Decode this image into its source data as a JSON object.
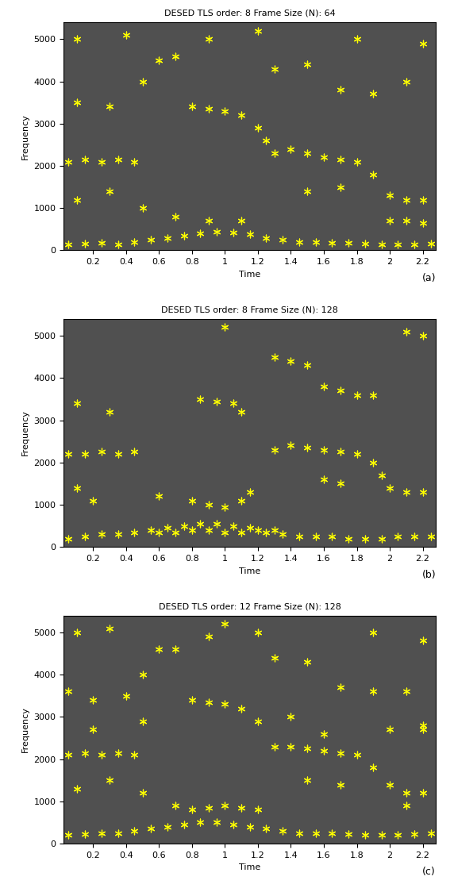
{
  "chart_data": [
    {
      "type": "scatter",
      "title": "DESED TLS order: 8 Frame Size (N): 64",
      "x_label": "Time",
      "y_label": "Frequency",
      "annotation": "(a)",
      "marker": "asterisk",
      "xlim": [
        0.02,
        2.28
      ],
      "ylim": [
        0,
        5400
      ],
      "xticks": [
        0.2,
        0.4,
        0.6,
        0.8,
        1,
        1.2,
        1.4,
        1.6,
        1.8,
        2,
        2.2
      ],
      "yticks": [
        0,
        1000,
        2000,
        3000,
        4000,
        5000
      ],
      "series": [
        {
          "name": "",
          "color": "#ffff00",
          "x": [
            0.05,
            0.15,
            0.25,
            0.35,
            0.45,
            0.55,
            0.65,
            0.75,
            0.85,
            0.95,
            1.05,
            1.15,
            1.25,
            1.35,
            1.45,
            1.55,
            1.65,
            1.75,
            1.85,
            1.95,
            2.05,
            2.15,
            2.25,
            0.05,
            0.15,
            0.25,
            0.35,
            0.45,
            0.8,
            0.9,
            1.0,
            1.1,
            1.2,
            1.25,
            1.3,
            1.4,
            1.5,
            1.6,
            1.7,
            1.8,
            1.9,
            2.0,
            2.1,
            2.2,
            0.1,
            0.3,
            0.5,
            0.6,
            0.7,
            1.3,
            1.5,
            1.7,
            1.9,
            2.1,
            0.1,
            0.3,
            0.5,
            0.7,
            0.9,
            1.1,
            1.5,
            1.7,
            2.0,
            2.1,
            2.2,
            0.1,
            0.4,
            0.9,
            1.2,
            1.8,
            2.2
          ],
          "values": [
            150,
            160,
            170,
            150,
            200,
            250,
            300,
            350,
            400,
            450,
            420,
            380,
            300,
            250,
            200,
            200,
            180,
            170,
            160,
            150,
            150,
            150,
            160,
            2100,
            2150,
            2100,
            2150,
            2100,
            3400,
            3350,
            3300,
            3200,
            2900,
            2600,
            2300,
            2400,
            2300,
            2200,
            2150,
            2100,
            1800,
            1300,
            1200,
            1200,
            3500,
            3400,
            4000,
            4500,
            4600,
            4300,
            4400,
            3800,
            3700,
            4000,
            1200,
            1400,
            1000,
            800,
            700,
            700,
            1400,
            1500,
            700,
            700,
            650,
            5000,
            5100,
            5000,
            5200,
            5000,
            4900
          ]
        }
      ]
    },
    {
      "type": "scatter",
      "title": "DESED TLS order: 8 Frame Size (N): 128",
      "x_label": "Time",
      "y_label": "Frequency",
      "annotation": "(b)",
      "marker": "asterisk",
      "xlim": [
        0.02,
        2.28
      ],
      "ylim": [
        0,
        5400
      ],
      "xticks": [
        0.2,
        0.4,
        0.6,
        0.8,
        1,
        1.2,
        1.4,
        1.6,
        1.8,
        2,
        2.2
      ],
      "yticks": [
        0,
        1000,
        2000,
        3000,
        4000,
        5000
      ],
      "series": [
        {
          "name": "",
          "color": "#ffff00",
          "x": [
            0.05,
            0.15,
            0.25,
            0.35,
            0.45,
            0.55,
            0.65,
            0.75,
            0.85,
            0.95,
            1.05,
            1.15,
            1.25,
            1.35,
            1.45,
            1.55,
            1.65,
            1.75,
            1.85,
            1.95,
            2.05,
            2.15,
            2.25,
            0.6,
            0.7,
            0.8,
            0.9,
            1.0,
            1.1,
            1.2,
            1.3,
            0.8,
            0.9,
            1.0,
            1.1,
            1.15,
            0.05,
            0.15,
            0.25,
            0.35,
            0.45,
            0.85,
            0.95,
            1.05,
            1.1,
            1.3,
            1.4,
            1.5,
            1.6,
            1.7,
            1.8,
            1.9,
            1.3,
            1.4,
            1.5,
            1.6,
            1.7,
            1.8,
            1.9,
            1.95,
            2.0,
            2.1,
            2.2,
            0.1,
            0.2,
            0.6,
            1.6,
            1.7,
            0.1,
            0.3,
            1.0,
            2.1,
            2.2
          ],
          "values": [
            200,
            250,
            300,
            300,
            350,
            400,
            450,
            500,
            550,
            550,
            500,
            450,
            350,
            300,
            250,
            250,
            250,
            200,
            200,
            200,
            250,
            250,
            250,
            350,
            350,
            400,
            400,
            350,
            350,
            400,
            400,
            1100,
            1000,
            950,
            1100,
            1300,
            2200,
            2200,
            2250,
            2200,
            2250,
            3500,
            3450,
            3400,
            3200,
            4500,
            4400,
            4300,
            3800,
            3700,
            3600,
            3600,
            2300,
            2400,
            2350,
            2300,
            2250,
            2200,
            2000,
            1700,
            1400,
            1300,
            1300,
            1400,
            1100,
            1200,
            1600,
            1500,
            3400,
            3200,
            5200,
            5100,
            5000
          ]
        }
      ]
    },
    {
      "type": "scatter",
      "title": "DESED TLS order: 12 Frame Size (N): 128",
      "x_label": "Time",
      "y_label": "Frequency",
      "annotation": "(c)",
      "marker": "asterisk",
      "xlim": [
        0.02,
        2.28
      ],
      "ylim": [
        0,
        5400
      ],
      "xticks": [
        0.2,
        0.4,
        0.6,
        0.8,
        1,
        1.2,
        1.4,
        1.6,
        1.8,
        2,
        2.2
      ],
      "yticks": [
        0,
        1000,
        2000,
        3000,
        4000,
        5000
      ],
      "series": [
        {
          "name": "",
          "color": "#ffff00",
          "x": [
            0.05,
            0.15,
            0.25,
            0.35,
            0.45,
            0.55,
            0.65,
            0.75,
            0.85,
            0.95,
            1.05,
            1.15,
            1.25,
            1.35,
            1.45,
            1.55,
            1.65,
            1.75,
            1.85,
            1.95,
            2.05,
            2.15,
            2.25,
            0.8,
            0.9,
            1.0,
            1.1,
            1.2,
            0.05,
            0.15,
            0.25,
            0.35,
            0.45,
            0.8,
            0.9,
            1.0,
            1.1,
            1.2,
            1.3,
            1.4,
            1.5,
            1.6,
            1.7,
            1.8,
            1.9,
            2.0,
            2.1,
            2.2,
            0.05,
            0.2,
            0.4,
            0.5,
            0.6,
            0.7,
            1.3,
            1.5,
            1.7,
            1.9,
            2.1,
            2.2,
            0.1,
            0.3,
            0.5,
            0.7,
            1.5,
            1.7,
            2.1,
            0.1,
            0.3,
            0.9,
            1.0,
            1.2,
            1.9,
            2.2,
            0.2,
            0.5,
            1.4,
            1.6,
            2.0,
            2.2
          ],
          "values": [
            200,
            220,
            250,
            250,
            300,
            350,
            400,
            450,
            500,
            500,
            450,
            400,
            350,
            300,
            250,
            250,
            250,
            220,
            200,
            200,
            200,
            220,
            250,
            800,
            850,
            900,
            850,
            800,
            2100,
            2150,
            2100,
            2150,
            2100,
            3400,
            3350,
            3300,
            3200,
            2900,
            2300,
            2300,
            2250,
            2200,
            2150,
            2100,
            1800,
            1400,
            1200,
            1200,
            3600,
            3400,
            3500,
            4000,
            4600,
            4600,
            4400,
            4300,
            3700,
            3600,
            3600,
            2700,
            1300,
            1500,
            1200,
            900,
            1500,
            1400,
            900,
            5000,
            5100,
            4900,
            5200,
            5000,
            5000,
            4800,
            2700,
            2900,
            3000,
            2600,
            2700,
            2800
          ]
        }
      ]
    }
  ]
}
